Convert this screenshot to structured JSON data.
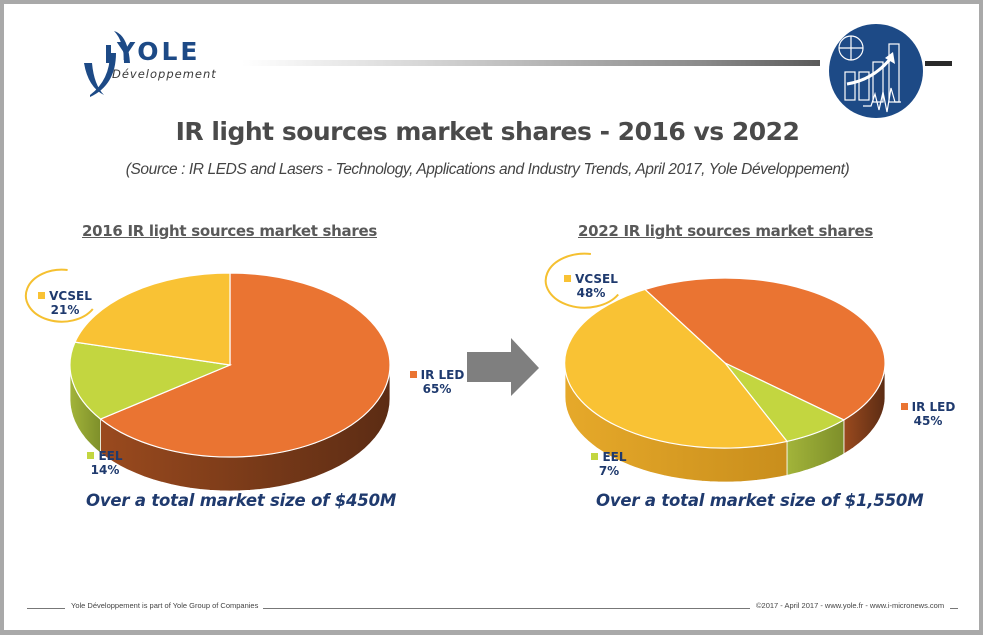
{
  "logo": {
    "word": "YOLE",
    "sub": "Développement"
  },
  "header": {
    "title": "IR light sources market shares - 2016 vs 2022",
    "source": "(Source : IR LEDS and Lasers - Technology, Applications and Industry Trends, April 2017, Yole Développement)"
  },
  "colors": {
    "ir_led": "#ea7432",
    "vcsel": "#f9c234",
    "eel": "#c3d640",
    "label_text": "#1f3a6e"
  },
  "chart_data": [
    {
      "type": "pie",
      "title": "2016 IR light sources market shares",
      "categories": [
        "IR LED",
        "EEL",
        "VCSEL"
      ],
      "values": [
        65,
        14,
        21
      ],
      "value_labels": [
        "65%",
        "14%",
        "21%"
      ],
      "unit": "%",
      "highlighted": "VCSEL",
      "footnote": "Over a total market size of $450M",
      "total_market_usd_m": 450
    },
    {
      "type": "pie",
      "title": "2022 IR light sources market shares",
      "categories": [
        "IR LED",
        "EEL",
        "VCSEL"
      ],
      "values": [
        45,
        7,
        48
      ],
      "value_labels": [
        "45%",
        "7%",
        "48%"
      ],
      "unit": "%",
      "highlighted": "VCSEL",
      "footnote": "Over a total market size of $1,550M",
      "total_market_usd_m": 1550
    }
  ],
  "footer": {
    "left": "Yole Développement is part of Yole Group of Companies",
    "right": "©2017 - April 2017 - www.yole.fr - www.i-micronews.com"
  }
}
